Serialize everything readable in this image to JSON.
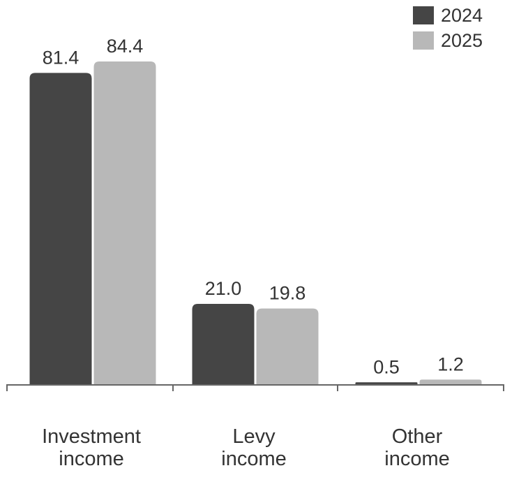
{
  "chart_data": {
    "type": "bar",
    "categories": [
      [
        "Investment",
        "income"
      ],
      [
        "Levy",
        "income"
      ],
      [
        "Other",
        "income"
      ]
    ],
    "series": [
      {
        "name": "2024",
        "color": "#454545",
        "values": [
          81.4,
          21.0,
          0.5
        ],
        "labels": [
          "81.4",
          "21.0",
          "0.5"
        ]
      },
      {
        "name": "2025",
        "color": "#b8b8b8",
        "values": [
          84.4,
          19.8,
          1.2
        ],
        "labels": [
          "84.4",
          "19.8",
          "1.2"
        ]
      }
    ],
    "title": "",
    "xlabel": "",
    "ylabel": "",
    "ylim": [
      0,
      84.4
    ],
    "grid": false,
    "legend_position": "top-right"
  }
}
